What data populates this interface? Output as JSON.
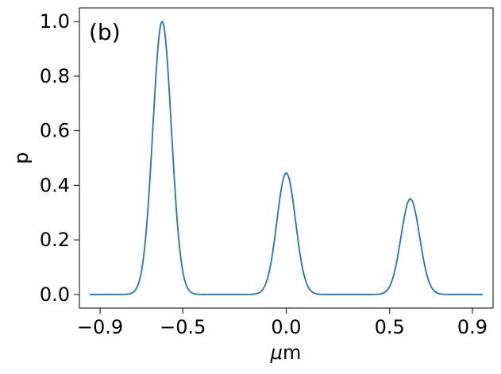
{
  "chart_data": {
    "type": "line",
    "panel_label": "(b)",
    "xlabel_prefix": "μ",
    "xlabel_suffix": "m",
    "ylabel": "p",
    "xlim": [
      -1.0,
      1.0
    ],
    "ylim": [
      -0.05,
      1.05
    ],
    "xticks": [
      -0.9,
      -0.5,
      0.0,
      0.5,
      0.9
    ],
    "xtick_labels": [
      "−0.9",
      "−0.5",
      "0.0",
      "0.5",
      "0.9"
    ],
    "yticks": [
      0.0,
      0.2,
      0.4,
      0.6,
      0.8,
      1.0
    ],
    "ytick_labels": [
      "0.0",
      "0.2",
      "0.4",
      "0.6",
      "0.8",
      "1.0"
    ],
    "grid": false,
    "line_color": "#1f77b4",
    "series": [
      {
        "x_range": [
          -0.95,
          0.95
        ],
        "peaks": [
          {
            "center": -0.6,
            "height": 1.0,
            "sigma": 0.045
          },
          {
            "center": 0.0,
            "height": 0.445,
            "sigma": 0.045
          },
          {
            "center": 0.6,
            "height": 0.35,
            "sigma": 0.045
          }
        ]
      }
    ]
  }
}
